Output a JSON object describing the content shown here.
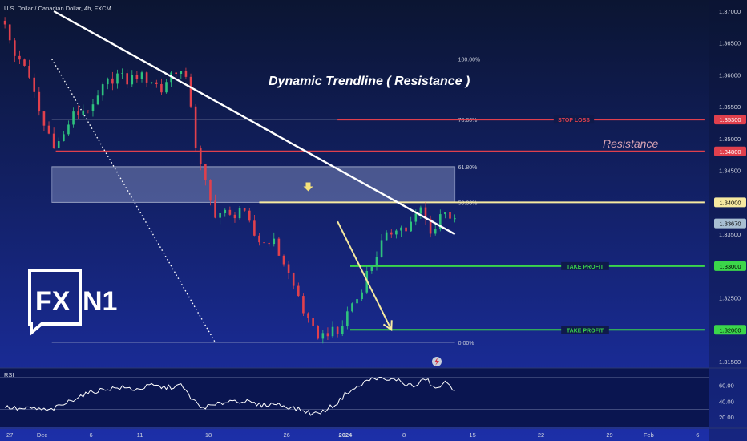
{
  "header": {
    "symbol": "U.S. Dollar / Canadian Dollar, 4h, FXCM"
  },
  "chart_data": {
    "type": "candlestick",
    "symbol": "USDCAD",
    "timeframe": "4h",
    "source": "FXCM",
    "y_axis": {
      "min": 1.315,
      "max": 1.37,
      "ticks": [
        "1.37000",
        "1.36500",
        "1.36000",
        "1.35500",
        "1.35000",
        "1.34500",
        "1.34000",
        "1.33500",
        "1.33000",
        "1.32500",
        "1.32000",
        "1.31500"
      ]
    },
    "x_axis": {
      "labels": [
        {
          "text": "27",
          "x": 0.5
        },
        {
          "text": "Dec",
          "x": 3.8
        },
        {
          "text": "6",
          "x": 8.8
        },
        {
          "text": "11",
          "x": 13.8
        },
        {
          "text": "18",
          "x": 20.8
        },
        {
          "text": "26",
          "x": 28.8
        },
        {
          "text": "2024",
          "x": 34.8
        },
        {
          "text": "8",
          "x": 40.8
        },
        {
          "text": "15",
          "x": 47.8
        },
        {
          "text": "22",
          "x": 54.8
        },
        {
          "text": "29",
          "x": 61.8
        },
        {
          "text": "Feb",
          "x": 65.8
        },
        {
          "text": "6",
          "x": 70.8
        }
      ]
    },
    "candles": [],
    "price_path": [
      {
        "x": 0.0,
        "y": 1.3685
      },
      {
        "x": 0.5,
        "y": 1.365
      },
      {
        "x": 1.2,
        "y": 1.362
      },
      {
        "x": 1.8,
        "y": 1.363
      },
      {
        "x": 2.5,
        "y": 1.359
      },
      {
        "x": 3.2,
        "y": 1.356
      },
      {
        "x": 3.8,
        "y": 1.3525
      },
      {
        "x": 4.6,
        "y": 1.3505
      },
      {
        "x": 5.2,
        "y": 1.3488
      },
      {
        "x": 6.0,
        "y": 1.3505
      },
      {
        "x": 6.8,
        "y": 1.3535
      },
      {
        "x": 7.6,
        "y": 1.354
      },
      {
        "x": 8.3,
        "y": 1.355
      },
      {
        "x": 9.0,
        "y": 1.3545
      },
      {
        "x": 9.8,
        "y": 1.3575
      },
      {
        "x": 10.6,
        "y": 1.359
      },
      {
        "x": 11.5,
        "y": 1.36
      },
      {
        "x": 12.5,
        "y": 1.359
      },
      {
        "x": 13.4,
        "y": 1.36
      },
      {
        "x": 14.3,
        "y": 1.3595
      },
      {
        "x": 15.2,
        "y": 1.359
      },
      {
        "x": 16.0,
        "y": 1.3575
      },
      {
        "x": 16.8,
        "y": 1.36
      },
      {
        "x": 17.6,
        "y": 1.361
      },
      {
        "x": 18.3,
        "y": 1.3598
      },
      {
        "x": 18.9,
        "y": 1.357
      },
      {
        "x": 19.3,
        "y": 1.351
      },
      {
        "x": 19.7,
        "y": 1.347
      },
      {
        "x": 20.4,
        "y": 1.3435
      },
      {
        "x": 21.0,
        "y": 1.34
      },
      {
        "x": 21.6,
        "y": 1.338
      },
      {
        "x": 22.3,
        "y": 1.3385
      },
      {
        "x": 23.1,
        "y": 1.3375
      },
      {
        "x": 24.0,
        "y": 1.3392
      },
      {
        "x": 24.8,
        "y": 1.337
      },
      {
        "x": 25.6,
        "y": 1.3345
      },
      {
        "x": 26.4,
        "y": 1.3335
      },
      {
        "x": 27.2,
        "y": 1.3345
      },
      {
        "x": 28.0,
        "y": 1.332
      },
      {
        "x": 28.7,
        "y": 1.33
      },
      {
        "x": 29.4,
        "y": 1.327
      },
      {
        "x": 30.1,
        "y": 1.325
      },
      {
        "x": 30.8,
        "y": 1.3215
      },
      {
        "x": 31.6,
        "y": 1.3195
      },
      {
        "x": 32.4,
        "y": 1.319
      },
      {
        "x": 33.2,
        "y": 1.32
      },
      {
        "x": 33.9,
        "y": 1.319
      },
      {
        "x": 34.6,
        "y": 1.321
      },
      {
        "x": 35.3,
        "y": 1.324
      },
      {
        "x": 36.1,
        "y": 1.325
      },
      {
        "x": 36.9,
        "y": 1.3285
      },
      {
        "x": 37.7,
        "y": 1.331
      },
      {
        "x": 38.5,
        "y": 1.3335
      },
      {
        "x": 39.3,
        "y": 1.335
      },
      {
        "x": 40.1,
        "y": 1.3365
      },
      {
        "x": 40.9,
        "y": 1.3355
      },
      {
        "x": 41.7,
        "y": 1.337
      },
      {
        "x": 42.5,
        "y": 1.339
      },
      {
        "x": 43.2,
        "y": 1.3365
      },
      {
        "x": 43.8,
        "y": 1.335
      },
      {
        "x": 44.5,
        "y": 1.338
      },
      {
        "x": 45.1,
        "y": 1.3393
      },
      {
        "x": 45.6,
        "y": 1.3375
      },
      {
        "x": 46.0,
        "y": 1.3367
      }
    ],
    "rsi": {
      "label": "RSI",
      "ticks": [
        "60.00",
        "40.00",
        "20.00"
      ],
      "ylim": [
        10,
        80
      ],
      "bands": [
        70,
        30
      ],
      "values": [
        {
          "x": 0.0,
          "y": 33
        },
        {
          "x": 1.5,
          "y": 30
        },
        {
          "x": 3.0,
          "y": 31
        },
        {
          "x": 4.5,
          "y": 28
        },
        {
          "x": 6.0,
          "y": 36
        },
        {
          "x": 7.5,
          "y": 46
        },
        {
          "x": 9.0,
          "y": 52
        },
        {
          "x": 10.5,
          "y": 56
        },
        {
          "x": 12.0,
          "y": 57
        },
        {
          "x": 13.5,
          "y": 55
        },
        {
          "x": 15.0,
          "y": 60
        },
        {
          "x": 16.5,
          "y": 57
        },
        {
          "x": 18.0,
          "y": 60
        },
        {
          "x": 19.0,
          "y": 45
        },
        {
          "x": 20.0,
          "y": 32
        },
        {
          "x": 21.5,
          "y": 35
        },
        {
          "x": 23.0,
          "y": 41
        },
        {
          "x": 24.5,
          "y": 40
        },
        {
          "x": 26.0,
          "y": 35
        },
        {
          "x": 27.5,
          "y": 37
        },
        {
          "x": 29.0,
          "y": 33
        },
        {
          "x": 30.5,
          "y": 28
        },
        {
          "x": 31.5,
          "y": 24
        },
        {
          "x": 32.5,
          "y": 27
        },
        {
          "x": 34.0,
          "y": 38
        },
        {
          "x": 35.0,
          "y": 52
        },
        {
          "x": 36.0,
          "y": 57
        },
        {
          "x": 37.0,
          "y": 66
        },
        {
          "x": 38.0,
          "y": 70
        },
        {
          "x": 39.0,
          "y": 66
        },
        {
          "x": 40.0,
          "y": 68
        },
        {
          "x": 41.0,
          "y": 61
        },
        {
          "x": 42.0,
          "y": 59
        },
        {
          "x": 43.0,
          "y": 69
        },
        {
          "x": 44.0,
          "y": 55
        },
        {
          "x": 45.0,
          "y": 63
        },
        {
          "x": 46.0,
          "y": 55
        }
      ]
    },
    "levels": [
      {
        "name": "stop-loss",
        "label": "STOP LOSS",
        "value": 1.353,
        "color": "#e0404d"
      },
      {
        "name": "resistance",
        "label": "Resistance",
        "value": 1.348,
        "color": "#e0404d"
      },
      {
        "name": "entry",
        "label": "",
        "value": 1.34,
        "color": "#f6e9a0"
      },
      {
        "name": "take-profit-1",
        "label": "TAKE PROFIT",
        "value": 1.33,
        "color": "#3bd64a"
      },
      {
        "name": "take-profit-2",
        "label": "TAKE PROFIT",
        "value": 1.32,
        "color": "#3bd64a"
      }
    ],
    "price_tags": [
      {
        "text": "1.35300",
        "value": 1.353,
        "bg": "#e0404d",
        "fg": "#ffffff"
      },
      {
        "text": "1.34800",
        "value": 1.348,
        "bg": "#e0404d",
        "fg": "#ffffff"
      },
      {
        "text": "1.34000",
        "value": 1.34,
        "bg": "#f6e9a0",
        "fg": "#000000"
      },
      {
        "text": "1.33670",
        "value": 1.3367,
        "bg": "#a8bfd2",
        "fg": "#000000"
      },
      {
        "text": "1.33000",
        "value": 1.33,
        "bg": "#3bd64a",
        "fg": "#000000"
      },
      {
        "text": "1.32000",
        "value": 1.32,
        "bg": "#3bd64a",
        "fg": "#000000"
      }
    ],
    "fibonacci": {
      "x_start": 4.8,
      "x_end": 46.0,
      "levels": [
        {
          "label": "100.00%",
          "value": 1.3625
        },
        {
          "label": "78.60%",
          "value": 1.353
        },
        {
          "label": "61.80%",
          "value": 1.3456
        },
        {
          "label": "50.00%",
          "value": 1.34
        },
        {
          "label": "0.00%",
          "value": 1.318
        }
      ]
    },
    "zone": {
      "x_start": 4.8,
      "x_end": 46.0,
      "y_low": 1.34,
      "y_high": 1.3456,
      "color": "#b4c0e8"
    },
    "trendline": {
      "label": "Dynamic Trendline ( Resistance )",
      "x1": 5.0,
      "y1": 1.37,
      "x2": 46.0,
      "y2": 1.335
    },
    "dotted_line": {
      "x1": 4.8,
      "y1": 1.3625,
      "x2": 21.5,
      "y2": 1.318
    },
    "arrow_down_marker": {
      "x": 31.0,
      "y": 1.342
    },
    "forecast_arrow": {
      "x1": 34.0,
      "y1": 1.337,
      "x2": 39.5,
      "y2": 1.32
    }
  },
  "logo": {
    "fx": "FX",
    "n1": "N1"
  },
  "colors": {
    "bull": "#2ec27e",
    "bear": "#e0404d",
    "axis_text": "#d0d4e0",
    "background_top": "#0b1532",
    "background_bottom": "#1c2fa8"
  }
}
